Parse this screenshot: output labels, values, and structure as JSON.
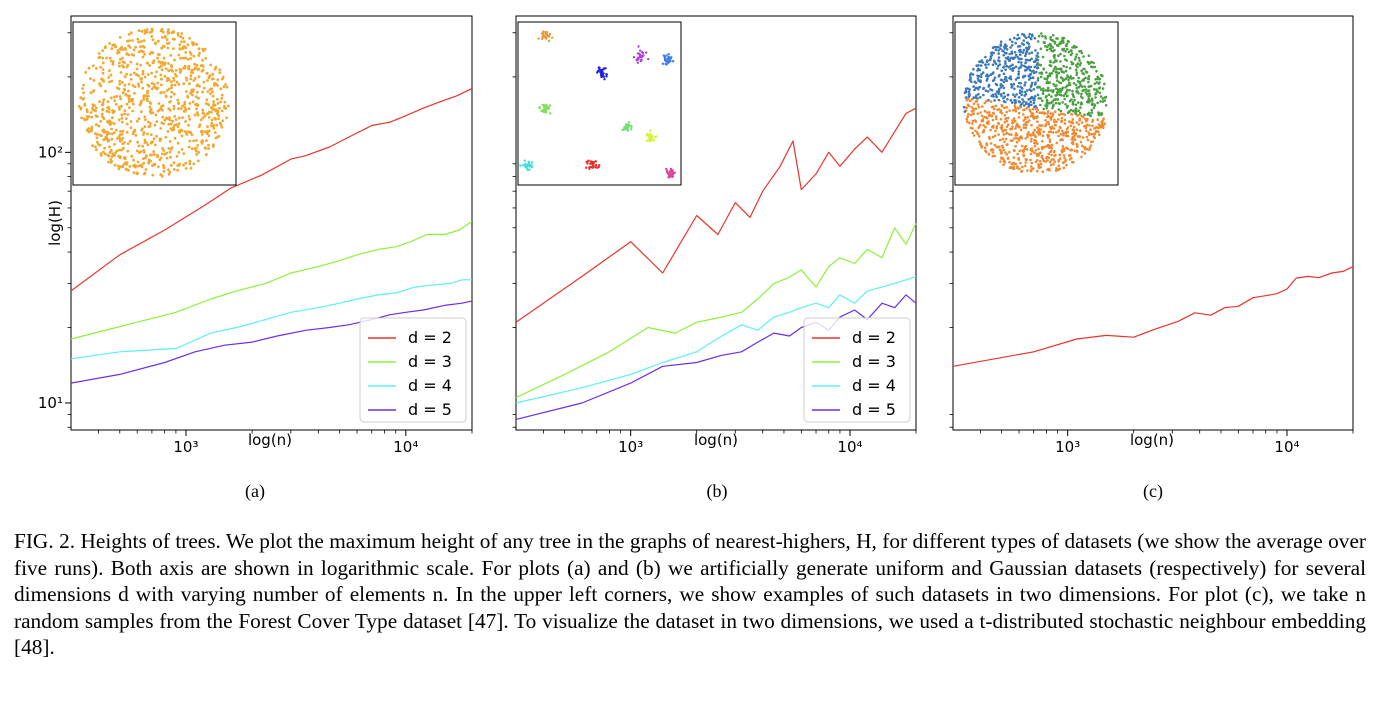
{
  "caption": "FIG. 2. Heights of trees. We plot the maximum height of any tree in the graphs of nearest-highers, H, for different types of datasets (we show the average over five runs). Both axis are shown in logarithmic scale. For plots (a) and (b) we artificially generate uniform and Gaussian datasets (respectively) for several dimensions d with varying number of elements n. In the upper left corners, we show examples of such datasets in two dimensions. For plot (c), we take n random samples from the Forest Cover Type dataset [47]. To visualize the dataset in two dimensions, we used a t-distributed stochastic neighbour embedding [48].",
  "colors": {
    "d2": "#e8352b",
    "d3": "#8cf03a",
    "d4": "#5cf0f0",
    "d5": "#6a2ee8",
    "orange": "#f0a830",
    "blue": "#3a78b8",
    "green": "#4aa040",
    "corange": "#f08a30"
  },
  "chart_data": [
    {
      "type": "line",
      "panel_label": "(a)",
      "xlabel": "log(n)",
      "ylabel": "log(H)",
      "x_scale": "log",
      "y_scale": "log",
      "xlim": [
        300,
        20000
      ],
      "ylim": [
        7.8,
        350
      ],
      "xticks": [
        {
          "value": 1000,
          "label": "10³"
        },
        {
          "value": 10000,
          "label": "10⁴"
        }
      ],
      "yticks": [
        {
          "value": 10,
          "label": "10¹"
        },
        {
          "value": 100,
          "label": "10²"
        }
      ],
      "ylabel_shown": true,
      "legend": {
        "position": "lower-right",
        "entries": [
          "d = 2",
          "d = 3",
          "d = 4",
          "d = 5"
        ]
      },
      "inset": "uniform-disk",
      "series": [
        {
          "name": "d = 2",
          "color": "#e8352b",
          "x": [
            300,
            500,
            800,
            1200,
            1600,
            2200,
            3000,
            3500,
            4500,
            5500,
            7000,
            8500,
            10000,
            12000,
            14000,
            17000,
            20000
          ],
          "y": [
            28,
            39,
            49,
            61,
            72,
            81,
            94,
            97,
            105,
            115,
            128,
            132,
            140,
            150,
            158,
            168,
            180
          ]
        },
        {
          "name": "d = 3",
          "color": "#8cf03a",
          "x": [
            300,
            600,
            900,
            1300,
            1700,
            2300,
            3000,
            4000,
            5000,
            6000,
            7500,
            9000,
            10500,
            12500,
            15000,
            17500,
            20000
          ],
          "y": [
            18,
            21,
            23,
            26,
            28,
            30,
            33,
            35,
            37,
            39,
            41,
            42,
            44,
            47,
            47,
            49,
            53
          ]
        },
        {
          "name": "d = 4",
          "color": "#5cf0f0",
          "x": [
            300,
            500,
            900,
            1300,
            1700,
            2300,
            3000,
            4000,
            5000,
            6000,
            7500,
            9000,
            11000,
            13000,
            16000,
            18000,
            20000
          ],
          "y": [
            15,
            16,
            16.5,
            19,
            20,
            21.5,
            23,
            24,
            25,
            26,
            27,
            27.5,
            29,
            29.5,
            30,
            31,
            31
          ]
        },
        {
          "name": "d = 5",
          "color": "#6a2ee8",
          "x": [
            300,
            500,
            800,
            1100,
            1500,
            2000,
            2600,
            3500,
            4500,
            5500,
            7000,
            8500,
            10000,
            12000,
            15000,
            18000,
            20000
          ],
          "y": [
            12,
            13,
            14.5,
            16,
            17,
            17.5,
            18.5,
            19.5,
            20,
            20.5,
            21.5,
            22.5,
            23,
            23.5,
            24.5,
            25,
            25.5
          ]
        }
      ]
    },
    {
      "type": "line",
      "panel_label": "(b)",
      "xlabel": "log(n)",
      "ylabel": "",
      "x_scale": "log",
      "y_scale": "log",
      "xlim": [
        300,
        20000
      ],
      "ylim": [
        7.8,
        350
      ],
      "xticks": [
        {
          "value": 1000,
          "label": "10³"
        },
        {
          "value": 10000,
          "label": "10⁴"
        }
      ],
      "yticks": [],
      "ylabel_shown": false,
      "legend": {
        "position": "lower-right",
        "entries": [
          "d = 2",
          "d = 3",
          "d = 4",
          "d = 5"
        ]
      },
      "inset": "gaussian-clusters",
      "series": [
        {
          "name": "d = 2",
          "color": "#e8352b",
          "x": [
            300,
            600,
            1000,
            1400,
            2000,
            2500,
            3000,
            3500,
            4000,
            4800,
            5500,
            6000,
            7000,
            8000,
            9000,
            10500,
            12000,
            14000,
            16000,
            18000,
            20000
          ],
          "y": [
            21,
            32,
            44,
            33,
            56,
            47,
            63,
            55,
            70,
            88,
            111,
            71,
            82,
            100,
            88,
            103,
            115,
            100,
            121,
            143,
            150
          ]
        },
        {
          "name": "d = 3",
          "color": "#8cf03a",
          "x": [
            300,
            500,
            800,
            1200,
            1600,
            2000,
            2600,
            3200,
            3800,
            4500,
            5200,
            6000,
            7000,
            8000,
            9000,
            10500,
            12000,
            14000,
            16000,
            18000,
            20000
          ],
          "y": [
            10.5,
            13,
            16,
            20,
            19,
            21,
            22,
            23,
            26,
            30,
            31.5,
            34,
            29,
            35,
            38,
            36,
            41,
            38,
            50,
            43,
            52
          ]
        },
        {
          "name": "d = 4",
          "color": "#5cf0f0",
          "x": [
            300,
            600,
            1000,
            1400,
            2000,
            2600,
            3200,
            3800,
            4500,
            5300,
            6000,
            7000,
            8000,
            9000,
            10500,
            12000,
            14000,
            16000,
            18000,
            20000
          ],
          "y": [
            10,
            11.5,
            13,
            14.5,
            16,
            18.5,
            20.5,
            19.5,
            22,
            23,
            24,
            25,
            24,
            27,
            25,
            28,
            29,
            30,
            31,
            32
          ]
        },
        {
          "name": "d = 5",
          "color": "#6a2ee8",
          "x": [
            300,
            600,
            1000,
            1400,
            2000,
            2600,
            3200,
            3800,
            4500,
            5300,
            6000,
            7000,
            8000,
            9000,
            10500,
            12000,
            14000,
            16000,
            18000,
            20000
          ],
          "y": [
            8.6,
            10,
            12,
            14,
            14.5,
            15.5,
            16,
            17.5,
            19,
            18.5,
            20,
            21,
            19.5,
            22,
            23.5,
            21.5,
            25,
            24,
            27,
            25
          ]
        }
      ]
    },
    {
      "type": "line",
      "panel_label": "(c)",
      "xlabel": "log(n)",
      "ylabel": "",
      "x_scale": "log",
      "y_scale": "log",
      "xlim": [
        300,
        20000
      ],
      "ylim": [
        7.8,
        350
      ],
      "xticks": [
        {
          "value": 1000,
          "label": "10³"
        },
        {
          "value": 10000,
          "label": "10⁴"
        }
      ],
      "yticks": [],
      "ylabel_shown": false,
      "legend": null,
      "inset": "forest-cover-tsne",
      "series": [
        {
          "name": "",
          "color": "#e8352b",
          "x": [
            300,
            700,
            1100,
            1500,
            2000,
            2500,
            3200,
            3800,
            4500,
            5200,
            6000,
            7000,
            8000,
            9000,
            10000,
            11000,
            12500,
            14000,
            16000,
            18000,
            20000
          ],
          "y": [
            14,
            16,
            18,
            18.6,
            18.3,
            19.7,
            21.2,
            22.9,
            22.4,
            24.0,
            24.3,
            26.3,
            26.8,
            27.3,
            28.5,
            31.5,
            32,
            31.6,
            33,
            33.5,
            35
          ]
        }
      ]
    }
  ]
}
